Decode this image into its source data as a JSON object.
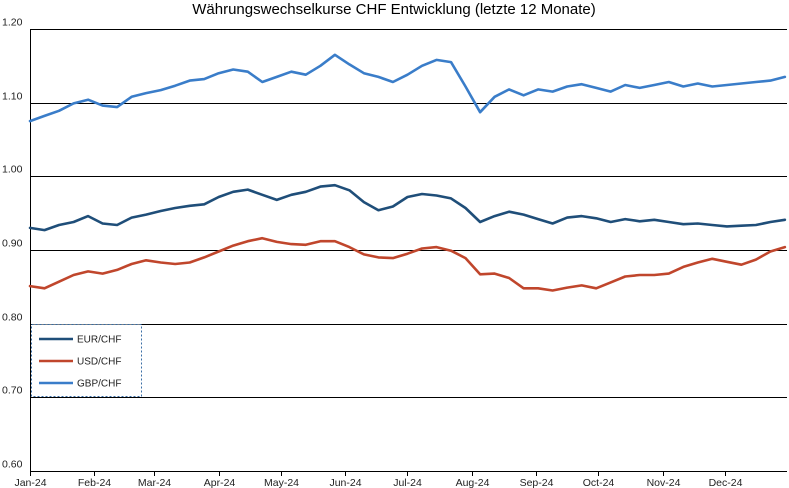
{
  "chart_data": {
    "type": "line",
    "title": "Währungswechselkurse CHF Entwicklung (letzte 12 Monate)",
    "xlabel": "",
    "ylabel": "",
    "ylim": [
      0.6,
      1.2
    ],
    "yticks": [
      0.6,
      0.7,
      0.8,
      0.9,
      1.0,
      1.1,
      1.2
    ],
    "ytick_labels": [
      "0.60",
      "0.70",
      "0.80",
      "0.90",
      "1.00",
      "1.10",
      "1.20"
    ],
    "grid": true,
    "legend_position": "lower-left",
    "x_range": [
      "2024-01-01",
      "2024-12-31"
    ],
    "xtick_labels": [
      "Jan-24",
      "Feb-24",
      "Mar-24",
      "Apr-24",
      "May-24",
      "Jun-24",
      "Jul-24",
      "Aug-24",
      "Sep-24",
      "Oct-24",
      "Nov-24",
      "Dec-24"
    ],
    "xtick_dates": [
      "2024-01-01",
      "2024-02-01",
      "2024-03-01",
      "2024-04-01",
      "2024-05-01",
      "2024-06-01",
      "2024-07-01",
      "2024-08-01",
      "2024-09-01",
      "2024-10-01",
      "2024-11-01",
      "2024-12-01"
    ],
    "x": [
      "2024-01-01",
      "2024-01-08",
      "2024-01-15",
      "2024-01-22",
      "2024-01-29",
      "2024-02-05",
      "2024-02-12",
      "2024-02-19",
      "2024-02-26",
      "2024-03-04",
      "2024-03-11",
      "2024-03-18",
      "2024-03-25",
      "2024-04-01",
      "2024-04-08",
      "2024-04-15",
      "2024-04-22",
      "2024-04-29",
      "2024-05-06",
      "2024-05-13",
      "2024-05-20",
      "2024-05-27",
      "2024-06-03",
      "2024-06-10",
      "2024-06-17",
      "2024-06-24",
      "2024-07-01",
      "2024-07-08",
      "2024-07-15",
      "2024-07-22",
      "2024-07-29",
      "2024-08-05",
      "2024-08-12",
      "2024-08-19",
      "2024-08-26",
      "2024-09-02",
      "2024-09-09",
      "2024-09-16",
      "2024-09-23",
      "2024-09-30",
      "2024-10-07",
      "2024-10-14",
      "2024-10-21",
      "2024-10-28",
      "2024-11-04",
      "2024-11-11",
      "2024-11-18",
      "2024-11-25",
      "2024-12-02",
      "2024-12-09",
      "2024-12-16",
      "2024-12-23",
      "2024-12-30"
    ],
    "series": [
      {
        "name": "EUR/CHF",
        "color": "#1f4e79",
        "values": [
          0.93,
          0.927,
          0.934,
          0.938,
          0.946,
          0.936,
          0.934,
          0.944,
          0.948,
          0.953,
          0.957,
          0.96,
          0.962,
          0.972,
          0.979,
          0.982,
          0.975,
          0.968,
          0.975,
          0.979,
          0.986,
          0.988,
          0.981,
          0.965,
          0.954,
          0.959,
          0.972,
          0.976,
          0.974,
          0.97,
          0.957,
          0.938,
          0.946,
          0.952,
          0.948,
          0.942,
          0.936,
          0.944,
          0.946,
          0.943,
          0.938,
          0.942,
          0.939,
          0.941,
          0.938,
          0.935,
          0.936,
          0.934,
          0.932,
          0.933,
          0.934,
          0.938,
          0.941
        ]
      },
      {
        "name": "USD/CHF",
        "color": "#c0462c",
        "values": [
          0.851,
          0.848,
          0.857,
          0.866,
          0.871,
          0.868,
          0.873,
          0.881,
          0.886,
          0.883,
          0.881,
          0.883,
          0.89,
          0.898,
          0.906,
          0.912,
          0.916,
          0.911,
          0.908,
          0.907,
          0.912,
          0.912,
          0.904,
          0.894,
          0.89,
          0.889,
          0.895,
          0.902,
          0.904,
          0.899,
          0.889,
          0.867,
          0.868,
          0.862,
          0.848,
          0.848,
          0.845,
          0.849,
          0.852,
          0.848,
          0.856,
          0.864,
          0.866,
          0.866,
          0.868,
          0.877,
          0.883,
          0.888,
          0.884,
          0.88,
          0.887,
          0.898,
          0.904
        ]
      },
      {
        "name": "GBP/CHF",
        "color": "#3a7dc9",
        "values": [
          1.075,
          1.082,
          1.089,
          1.099,
          1.104,
          1.096,
          1.094,
          1.108,
          1.113,
          1.117,
          1.123,
          1.13,
          1.132,
          1.14,
          1.145,
          1.142,
          1.128,
          1.135,
          1.142,
          1.138,
          1.15,
          1.165,
          1.152,
          1.14,
          1.135,
          1.128,
          1.138,
          1.15,
          1.158,
          1.155,
          1.122,
          1.087,
          1.108,
          1.118,
          1.11,
          1.118,
          1.115,
          1.122,
          1.125,
          1.12,
          1.115,
          1.124,
          1.12,
          1.124,
          1.128,
          1.122,
          1.126,
          1.122,
          1.124,
          1.126,
          1.128,
          1.13,
          1.135
        ]
      }
    ]
  }
}
